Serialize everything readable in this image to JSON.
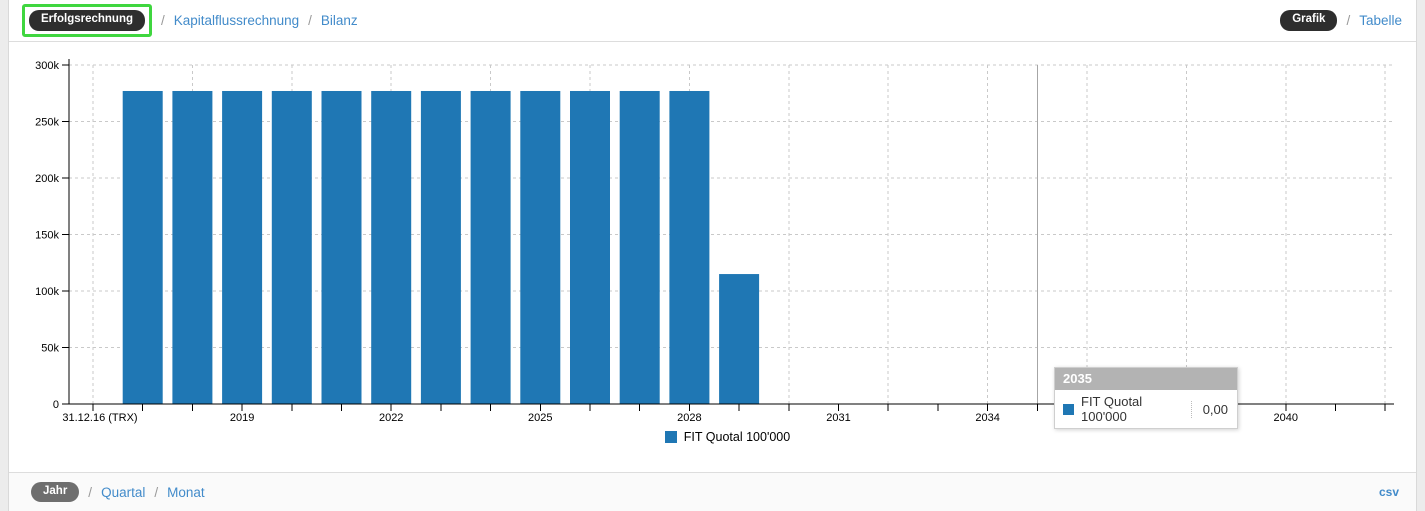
{
  "colors": {
    "bar": "#1f77b4",
    "link": "#428bca",
    "pill_active": "#2e2e2e",
    "pill_period": "#6e6e6e",
    "highlight": "#3fd63f",
    "tooltip_header": "#b3b3b3"
  },
  "header": {
    "separator": "/",
    "views": [
      {
        "label": "Erfolgsrechnung",
        "active": true,
        "highlighted": true
      },
      {
        "label": "Kapitalflussrechnung",
        "active": false
      },
      {
        "label": "Bilanz",
        "active": false
      }
    ],
    "modes": [
      {
        "label": "Grafik",
        "active": true
      },
      {
        "label": "Tabelle",
        "active": false
      }
    ]
  },
  "chart_data": {
    "type": "bar",
    "title": "",
    "xlabel": "",
    "ylabel": "",
    "x": [
      2017,
      2018,
      2019,
      2020,
      2021,
      2022,
      2023,
      2024,
      2025,
      2026,
      2027,
      2028,
      2029
    ],
    "series": [
      {
        "name": "FIT Quotal 100'000",
        "color": "#1f77b4",
        "values": [
          277000,
          277000,
          277000,
          277000,
          277000,
          277000,
          277000,
          277000,
          277000,
          277000,
          277000,
          277000,
          115000
        ]
      }
    ],
    "x_axis": {
      "range_years": [
        2016,
        2042
      ],
      "start_label": "31.12.16 (TRX)",
      "label_years": [
        2019,
        2022,
        2025,
        2028,
        2031,
        2034,
        2037,
        2040
      ],
      "tick_every_years": 1,
      "grid_every_years": 2
    },
    "y_axis": {
      "min": 0,
      "max": 300000,
      "tick_values": [
        0,
        50000,
        100000,
        150000,
        200000,
        250000,
        300000
      ],
      "tick_labels": [
        "0",
        "50k",
        "100k",
        "150k",
        "200k",
        "250k",
        "300k"
      ]
    },
    "legend": {
      "label": "FIT Quotal 100'000",
      "position": "bottom-center"
    },
    "grid": true,
    "hover_year": 2035
  },
  "tooltip": {
    "title": "2035",
    "series": "FIT Quotal 100'000",
    "value": "0,00"
  },
  "footer": {
    "separator": "/",
    "period_options": [
      {
        "label": "Jahr",
        "active": true
      },
      {
        "label": "Quartal",
        "active": false
      },
      {
        "label": "Monat",
        "active": false
      }
    ],
    "export_label": "csv"
  }
}
